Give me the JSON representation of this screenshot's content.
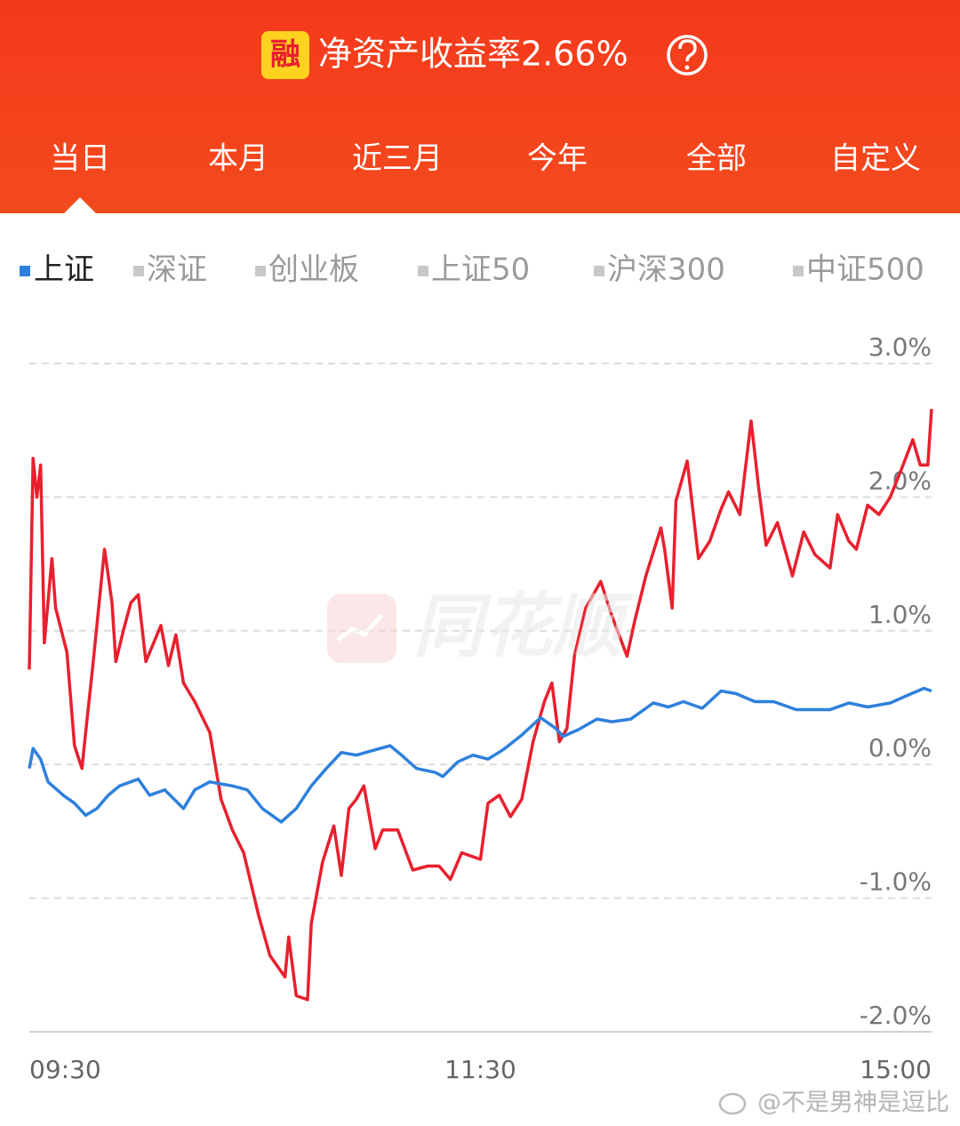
{
  "header": {
    "badge": "融",
    "title": "净资产收益率2.66%"
  },
  "tabs": {
    "items": [
      "当日",
      "本月",
      "近三月",
      "今年",
      "全部",
      "自定义"
    ],
    "active": 0
  },
  "watermark": "同花顺",
  "credit": "@不是男神是逗比",
  "chart_data": {
    "type": "line",
    "series": [
      {
        "color": "#e8202e",
        "x": [
          0,
          1,
          2,
          3,
          4,
          6,
          7,
          10,
          12,
          14,
          15,
          17,
          20,
          22,
          23,
          25,
          27,
          29,
          31,
          35,
          37,
          39,
          41,
          44,
          48,
          51,
          54,
          57,
          61,
          64,
          68,
          69,
          71,
          74,
          75,
          78,
          81,
          83,
          85,
          87,
          89,
          92,
          94,
          98,
          102,
          106,
          109,
          112,
          115,
          120,
          122,
          125,
          128,
          131,
          134,
          137,
          139,
          141,
          143,
          145,
          148,
          152,
          155,
          159,
          161,
          164,
          168,
          169,
          171,
          172,
          175,
          178,
          181,
          184,
          186,
          189,
          192,
          194,
          196,
          199,
          203,
          206,
          209,
          213,
          215,
          218,
          220,
          223,
          226,
          229,
          232,
          235,
          237,
          239,
          240
        ],
        "values": [
          0.71,
          2.29,
          2.0,
          2.24,
          0.91,
          1.54,
          1.17,
          0.84,
          0.14,
          -0.03,
          0.24,
          0.77,
          1.61,
          1.21,
          0.77,
          1.0,
          1.21,
          1.27,
          0.77,
          1.04,
          0.74,
          0.97,
          0.61,
          0.47,
          0.24,
          -0.26,
          -0.49,
          -0.66,
          -1.13,
          -1.43,
          -1.59,
          -1.29,
          -1.73,
          -1.76,
          -1.19,
          -0.73,
          -0.46,
          -0.83,
          -0.33,
          -0.26,
          -0.16,
          -0.63,
          -0.49,
          -0.49,
          -0.79,
          -0.76,
          -0.76,
          -0.86,
          -0.66,
          -0.71,
          -0.29,
          -0.23,
          -0.39,
          -0.26,
          0.17,
          0.47,
          0.61,
          0.17,
          0.27,
          0.81,
          1.17,
          1.37,
          1.11,
          0.81,
          1.07,
          1.41,
          1.77,
          1.61,
          1.17,
          1.97,
          2.27,
          1.54,
          1.67,
          1.91,
          2.04,
          1.87,
          2.57,
          2.07,
          1.64,
          1.81,
          1.41,
          1.74,
          1.57,
          1.47,
          1.87,
          1.67,
          1.61,
          1.94,
          1.87,
          2.0,
          2.21,
          2.43,
          2.24,
          2.24,
          2.66
        ]
      },
      {
        "name": "上证",
        "color": "#2f80dc",
        "x": [
          0,
          1,
          3,
          5,
          9,
          12,
          15,
          18,
          21,
          24,
          29,
          32,
          36,
          41,
          44,
          48,
          54,
          58,
          62,
          67,
          71,
          75,
          79,
          83,
          87,
          92,
          96,
          99,
          103,
          108,
          110,
          114,
          118,
          122,
          126,
          131,
          136,
          140,
          142,
          146,
          151,
          155,
          160,
          166,
          170,
          174,
          179,
          184,
          188,
          193,
          198,
          204,
          209,
          213,
          218,
          223,
          229,
          233,
          238,
          240
        ],
        "values": [
          -0.03,
          0.12,
          0.04,
          -0.13,
          -0.23,
          -0.29,
          -0.38,
          -0.33,
          -0.23,
          -0.16,
          -0.11,
          -0.23,
          -0.19,
          -0.33,
          -0.19,
          -0.13,
          -0.16,
          -0.19,
          -0.33,
          -0.43,
          -0.33,
          -0.16,
          -0.03,
          0.09,
          0.07,
          0.11,
          0.14,
          0.07,
          -0.03,
          -0.06,
          -0.09,
          0.02,
          0.07,
          0.04,
          0.11,
          0.22,
          0.35,
          0.27,
          0.21,
          0.26,
          0.34,
          0.32,
          0.34,
          0.46,
          0.43,
          0.47,
          0.42,
          0.55,
          0.53,
          0.47,
          0.47,
          0.41,
          0.41,
          0.41,
          0.46,
          0.43,
          0.46,
          0.51,
          0.57,
          0.55
        ]
      }
    ],
    "other_indices": [
      "深证",
      "创业板",
      "上证50",
      "沪深300",
      "中证500"
    ],
    "inactive_color": "#c8c8c8",
    "xlim": [
      0,
      240
    ],
    "xticks": [
      {
        "value": 0,
        "label": "09:30"
      },
      {
        "value": 120,
        "label": "11:30"
      },
      {
        "value": 240,
        "label": "15:00"
      }
    ],
    "ylim": [
      -2,
      3
    ],
    "yticks": [
      {
        "value": 3,
        "label": "3.0%"
      },
      {
        "value": 2,
        "label": "2.0%"
      },
      {
        "value": 1,
        "label": "1.0%"
      },
      {
        "value": 0,
        "label": "0.0%"
      },
      {
        "value": -1,
        "label": "-1.0%"
      },
      {
        "value": -2,
        "label": "-2.0%"
      }
    ],
    "grid": true
  }
}
